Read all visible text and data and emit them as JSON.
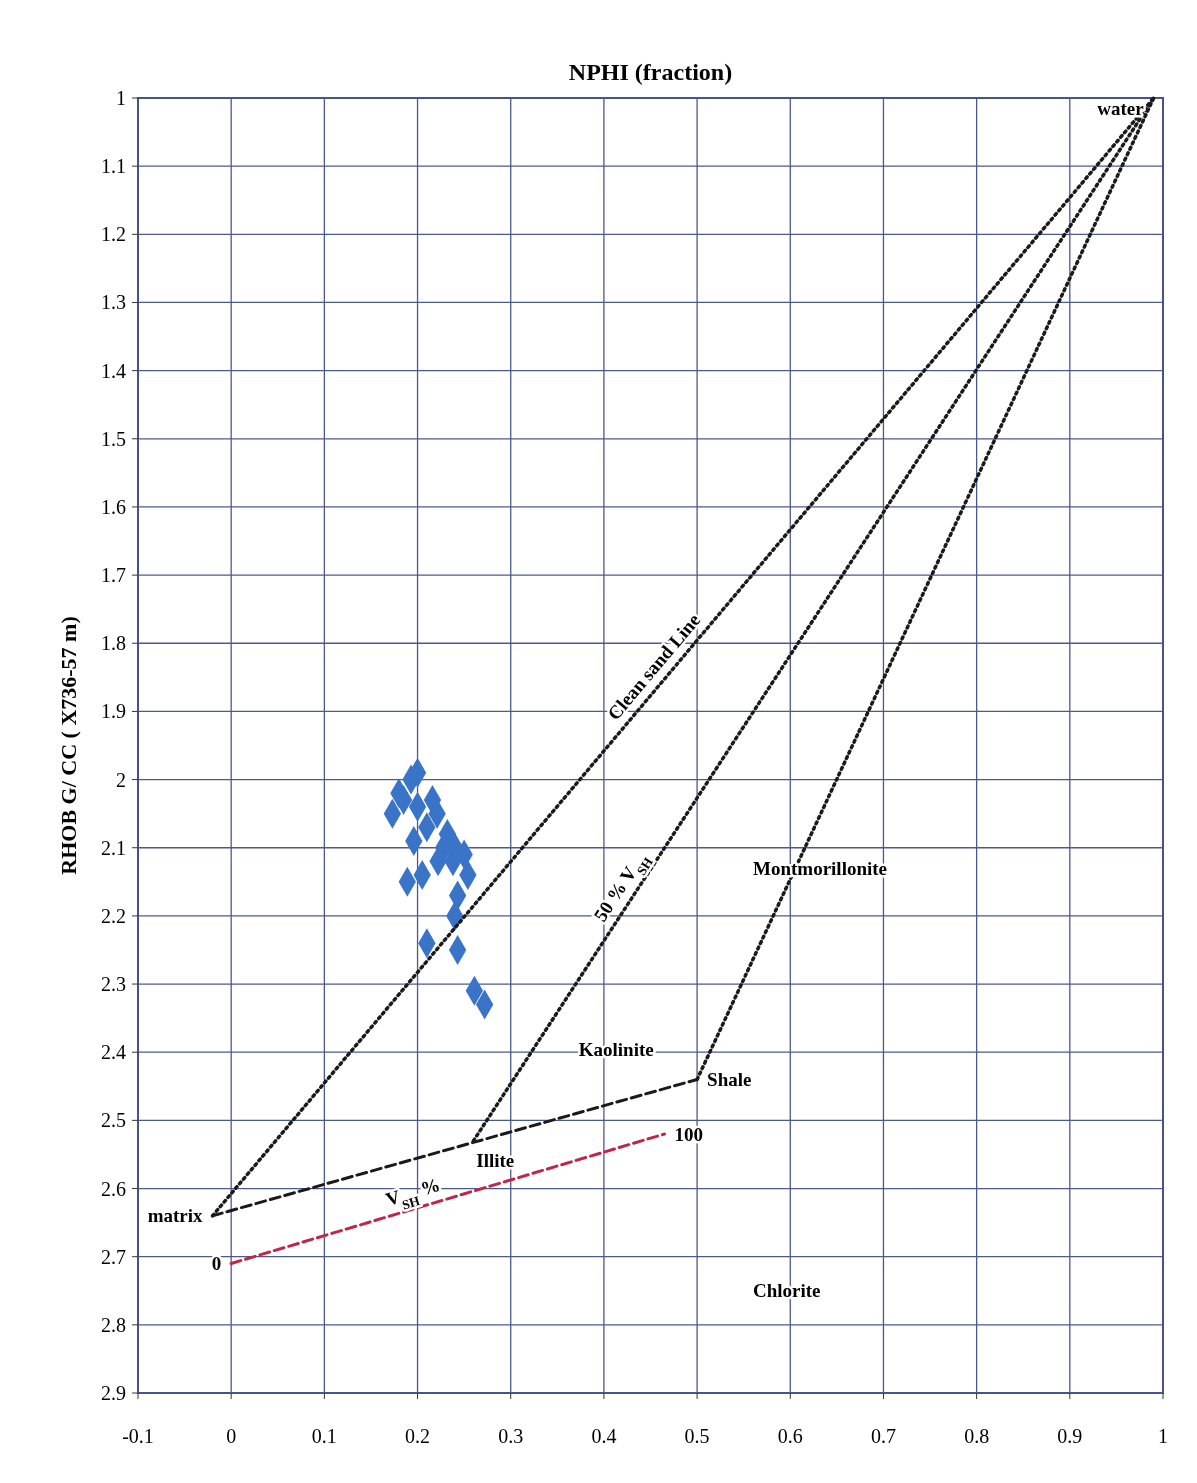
{
  "chart_data": {
    "type": "scatter",
    "xlabel": "NPHI (fraction)",
    "ylabel": "RHOB G/ CC ( X736-57 m)",
    "xlim": [
      -0.1,
      1
    ],
    "ylim": [
      2.9,
      1
    ],
    "xticks": [
      -0.1,
      0,
      0.1,
      0.2,
      0.3,
      0.4,
      0.5,
      0.6,
      0.7,
      0.8,
      0.9,
      1
    ],
    "yticks": [
      1,
      1.1,
      1.2,
      1.3,
      1.4,
      1.5,
      1.6,
      1.7,
      1.8,
      1.9,
      2,
      2.1,
      2.2,
      2.3,
      2.4,
      2.5,
      2.6,
      2.7,
      2.8,
      2.9
    ],
    "grid": true,
    "series": [
      {
        "marker": "diamond",
        "color": "#3a74c8",
        "x": [
          0.193,
          0.2,
          0.185,
          0.173,
          0.18,
          0.2,
          0.216,
          0.221,
          0.232,
          0.21,
          0.196,
          0.228,
          0.24,
          0.205,
          0.189,
          0.238,
          0.254,
          0.243,
          0.24,
          0.21,
          0.243,
          0.261,
          0.272,
          0.222,
          0.25
        ],
        "values": [
          2.0,
          1.99,
          2.03,
          2.05,
          2.02,
          2.04,
          2.03,
          2.05,
          2.08,
          2.07,
          2.09,
          2.1,
          2.1,
          2.14,
          2.15,
          2.12,
          2.14,
          2.17,
          2.2,
          2.24,
          2.25,
          2.31,
          2.33,
          2.12,
          2.11
        ]
      },
      {
        "type": "line",
        "line_style": "dotted",
        "color": "#1a1a1a",
        "x": [
          -0.02,
          0.99
        ],
        "values": [
          2.64,
          1.0
        ]
      },
      {
        "type": "line",
        "line_style": "dotted",
        "color": "#1a1a1a",
        "x": [
          0.26,
          0.99
        ],
        "values": [
          2.53,
          1.0
        ]
      },
      {
        "type": "line",
        "line_style": "dotted",
        "color": "#1a1a1a",
        "x": [
          0.5,
          0.99
        ],
        "values": [
          2.44,
          1.0
        ]
      },
      {
        "type": "line",
        "line_style": "dashed",
        "color": "#1a1a1a",
        "x": [
          -0.02,
          0.5
        ],
        "values": [
          2.64,
          2.44
        ]
      },
      {
        "type": "line",
        "line_style": "dashed",
        "color": "#c0254a",
        "x": [
          0,
          0.465
        ],
        "values": [
          2.71,
          2.52
        ]
      }
    ],
    "annotations": [
      {
        "text": "water",
        "x": 0.99,
        "y": 1.0
      },
      {
        "text": "Clean sand Line",
        "x": 0.467,
        "y": 1.85
      },
      "Montmorillonite",
      {
        "text": "50 % V$_{SH}$",
        "x": 0.432,
        "y": 2.17
      },
      "Kaolinite",
      {
        "text": "Shale",
        "x": 0.5,
        "y": 2.44
      },
      "Illite",
      {
        "text": "matrix",
        "x": -0.02,
        "y": 2.64
      },
      {
        "text": "V$_{SH}$ %",
        "x": 0.2,
        "y": 2.628
      },
      {
        "text": "0",
        "x": 0,
        "y": 2.71
      },
      {
        "text": "100",
        "x": 0.465,
        "y": 2.52
      },
      "Chlorite"
    ]
  }
}
